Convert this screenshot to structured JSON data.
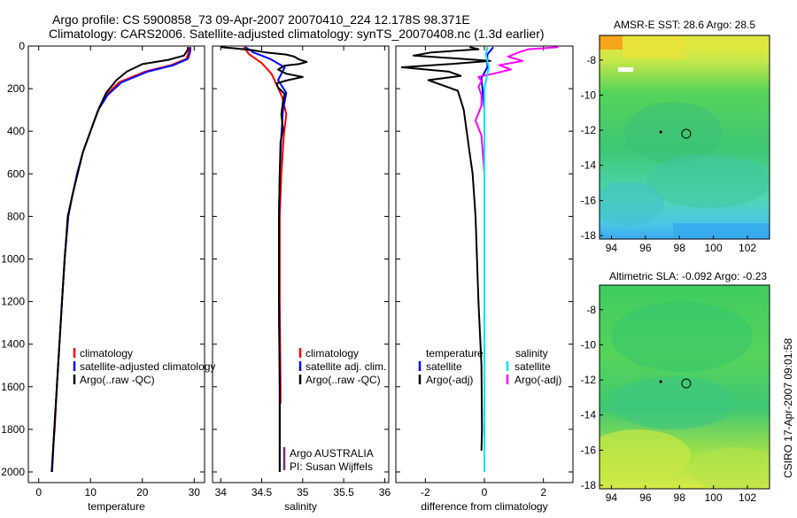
{
  "header": {
    "line1": "Argo profile: CS 5900858_73 09-Apr-2007 20070410_224 12.178S 98.371E",
    "line2": "Climatology: CARS2006. Satellite-adjusted climatology: synTS_20070408.nc (1.3d earlier)"
  },
  "side_label": "CSIRO 17-Apr-2007 09:01:58",
  "colors": {
    "climatology": "#ff0000",
    "satellite": "#0000ff",
    "argo": "#000000",
    "sal_satellite": "#00e5ee",
    "sal_argo": "#ff00ff"
  },
  "chart_data": [
    {
      "id": "temperature",
      "type": "line",
      "xlabel": "temperature",
      "ylabel": "",
      "xlim": [
        -2,
        32
      ],
      "ylim": [
        2050,
        0
      ],
      "x_ticks": [
        0,
        10,
        20,
        30
      ],
      "y_ticks": [
        0,
        200,
        400,
        600,
        800,
        1000,
        1200,
        1400,
        1600,
        1800,
        2000
      ],
      "legend": {
        "placement": "lower-right",
        "entries": [
          {
            "label": "climatology",
            "color": "#ff0000"
          },
          {
            "label": "satellite-adjusted climatology",
            "color": "#0000ff"
          },
          {
            "label": "Argo(..raw -QC)",
            "color": "#000000"
          }
        ]
      },
      "series": [
        {
          "color": "#ff0000",
          "points": [
            [
              29.0,
              5
            ],
            [
              28.9,
              30
            ],
            [
              28.5,
              60
            ],
            [
              25.5,
              90
            ],
            [
              20.5,
              120
            ],
            [
              15.5,
              170
            ],
            [
              13.0,
              230
            ],
            [
              11.5,
              300
            ],
            [
              10.0,
              400
            ],
            [
              8.5,
              500
            ],
            [
              7.5,
              600
            ],
            [
              6.5,
              700
            ],
            [
              5.7,
              800
            ],
            [
              5.0,
              1000
            ],
            [
              4.5,
              1200
            ],
            [
              4.0,
              1400
            ],
            [
              3.5,
              1600
            ],
            [
              3.1,
              1800
            ],
            [
              2.8,
              1880
            ]
          ]
        },
        {
          "color": "#0000ff",
          "points": [
            [
              29.3,
              5
            ],
            [
              29.2,
              30
            ],
            [
              28.8,
              60
            ],
            [
              26.0,
              90
            ],
            [
              21.0,
              120
            ],
            [
              16.0,
              170
            ],
            [
              13.3,
              230
            ],
            [
              11.5,
              300
            ],
            [
              10.0,
              400
            ],
            [
              8.5,
              500
            ],
            [
              7.4,
              600
            ],
            [
              6.5,
              700
            ],
            [
              5.7,
              800
            ],
            [
              5.0,
              1000
            ],
            [
              4.5,
              1200
            ],
            [
              4.0,
              1400
            ],
            [
              3.5,
              1600
            ],
            [
              3.0,
              1800
            ],
            [
              2.6,
              2000
            ]
          ]
        },
        {
          "color": "#000000",
          "points": [
            [
              28.8,
              5
            ],
            [
              28.7,
              20
            ],
            [
              28.0,
              45
            ],
            [
              25.0,
              65
            ],
            [
              20.0,
              85
            ],
            [
              17.0,
              120
            ],
            [
              15.0,
              160
            ],
            [
              13.0,
              220
            ],
            [
              11.5,
              300
            ],
            [
              10.0,
              400
            ],
            [
              8.5,
              500
            ],
            [
              7.5,
              600
            ],
            [
              6.5,
              700
            ],
            [
              5.6,
              800
            ],
            [
              5.0,
              1000
            ],
            [
              4.5,
              1200
            ],
            [
              4.0,
              1400
            ],
            [
              3.5,
              1600
            ],
            [
              3.0,
              1800
            ],
            [
              2.5,
              2000
            ]
          ]
        }
      ]
    },
    {
      "id": "salinity",
      "type": "line",
      "xlabel": "salinity",
      "ylabel": "",
      "xlim": [
        33.9,
        36.05
      ],
      "ylim": [
        2050,
        0
      ],
      "x_ticks": [
        34,
        34.5,
        35,
        35.5,
        36
      ],
      "x_tick_labels": [
        "34",
        "34.5",
        "35",
        "35.5",
        "36"
      ],
      "legend": {
        "placement": "lower-right",
        "entries": [
          {
            "label": "climatology",
            "color": "#ff0000"
          },
          {
            "label": "satellite adj. clim.",
            "color": "#0000ff"
          },
          {
            "label": "Argo(..raw -QC)",
            "color": "#000000"
          }
        ]
      },
      "annotations": [
        "Argo AUSTRALIA",
        "PI: Susan Wijffels"
      ],
      "series": [
        {
          "color": "#ff0000",
          "points": [
            [
              34.28,
              5
            ],
            [
              34.35,
              40
            ],
            [
              34.5,
              80
            ],
            [
              34.62,
              130
            ],
            [
              34.68,
              180
            ],
            [
              34.75,
              240
            ],
            [
              34.8,
              320
            ],
            [
              34.77,
              420
            ],
            [
              34.74,
              600
            ],
            [
              34.72,
              800
            ],
            [
              34.72,
              1200
            ],
            [
              34.73,
              1600
            ],
            [
              34.73,
              1680
            ]
          ]
        },
        {
          "color": "#0000ff",
          "points": [
            [
              34.3,
              5
            ],
            [
              34.4,
              30
            ],
            [
              34.6,
              60
            ],
            [
              34.78,
              100
            ],
            [
              34.7,
              160
            ],
            [
              34.8,
              220
            ],
            [
              34.76,
              300
            ],
            [
              34.74,
              420
            ],
            [
              34.72,
              600
            ],
            [
              34.71,
              800
            ],
            [
              34.71,
              1200
            ],
            [
              34.72,
              1600
            ],
            [
              34.72,
              2000
            ]
          ]
        },
        {
          "color": "#000000",
          "points": [
            [
              34.0,
              5
            ],
            [
              34.2,
              12
            ],
            [
              34.4,
              20
            ],
            [
              34.55,
              30
            ],
            [
              34.8,
              40
            ],
            [
              34.9,
              50
            ],
            [
              34.95,
              62
            ],
            [
              35.05,
              75
            ],
            [
              34.95,
              85
            ],
            [
              34.78,
              92
            ],
            [
              34.7,
              110
            ],
            [
              34.8,
              130
            ],
            [
              35.0,
              145
            ],
            [
              34.82,
              160
            ],
            [
              34.68,
              175
            ],
            [
              34.7,
              195
            ],
            [
              34.78,
              225
            ],
            [
              34.76,
              260
            ],
            [
              34.74,
              320
            ],
            [
              34.76,
              390
            ],
            [
              34.73,
              450
            ],
            [
              34.72,
              600
            ],
            [
              34.71,
              800
            ],
            [
              34.71,
              1200
            ],
            [
              34.72,
              1600
            ],
            [
              34.72,
              2000
            ]
          ]
        }
      ]
    },
    {
      "id": "difference",
      "type": "line",
      "xlabel": "difference from climatology",
      "ylabel": "",
      "xlim": [
        -3.0,
        3.0
      ],
      "ylim": [
        2050,
        0
      ],
      "x_ticks": [
        -2,
        0,
        2
      ],
      "legend": {
        "placement": "lower-right",
        "entries": [
          {
            "group": "temperature",
            "label": "satellite",
            "color": "#0000ff"
          },
          {
            "group": "temperature",
            "label": "Argo(-adj)",
            "color": "#000000"
          },
          {
            "group": "salinity",
            "label": "satellite",
            "color": "#00e5ee"
          },
          {
            "group": "salinity",
            "label": "Argo(-adj)",
            "color": "#ff00ff"
          }
        ]
      },
      "series": [
        {
          "group": "temperature",
          "label": "Argo(-adj)",
          "color": "#000000",
          "points": [
            [
              -0.5,
              5
            ],
            [
              -0.2,
              15
            ],
            [
              -1.8,
              30
            ],
            [
              -2.4,
              45
            ],
            [
              -1.0,
              58
            ],
            [
              0.2,
              70
            ],
            [
              -1.2,
              85
            ],
            [
              -2.8,
              100
            ],
            [
              -1.2,
              120
            ],
            [
              -0.8,
              140
            ],
            [
              -1.9,
              160
            ],
            [
              -1.5,
              180
            ],
            [
              -0.9,
              210
            ],
            [
              -0.7,
              300
            ],
            [
              -0.6,
              400
            ],
            [
              -0.5,
              500
            ],
            [
              -0.4,
              600
            ],
            [
              -0.3,
              800
            ],
            [
              -0.2,
              1200
            ],
            [
              -0.1,
              1500
            ],
            [
              -0.08,
              1800
            ],
            [
              -0.1,
              1900
            ]
          ]
        },
        {
          "group": "temperature",
          "label": "satellite",
          "color": "#0000ff",
          "points": [
            [
              0.3,
              5
            ],
            [
              0.1,
              40
            ],
            [
              0.1,
              100
            ],
            [
              -0.1,
              150
            ],
            [
              0.0,
              300
            ],
            [
              0.0,
              600
            ],
            [
              0.0,
              1000
            ],
            [
              0.0,
              1400
            ]
          ]
        },
        {
          "group": "salinity",
          "label": "Argo(-adj)",
          "color": "#ff00ff",
          "points": [
            [
              2.5,
              5
            ],
            [
              1.5,
              15
            ],
            [
              1.2,
              28
            ],
            [
              0.8,
              50
            ],
            [
              1.3,
              70
            ],
            [
              0.5,
              90
            ],
            [
              0.9,
              110
            ],
            [
              0.3,
              130
            ],
            [
              -0.2,
              145
            ],
            [
              -0.1,
              165
            ],
            [
              -0.2,
              190
            ],
            [
              -0.1,
              230
            ],
            [
              -0.1,
              280
            ],
            [
              -0.3,
              350
            ],
            [
              -0.1,
              420
            ],
            [
              0.0,
              600
            ],
            [
              0.0,
              1200
            ],
            [
              0.0,
              1700
            ]
          ]
        },
        {
          "group": "salinity",
          "label": "satellite",
          "color": "#00e5ee",
          "points": [
            [
              0.1,
              5
            ],
            [
              0.05,
              40
            ],
            [
              0.15,
              100
            ],
            [
              0.0,
              200
            ],
            [
              0.0,
              400
            ],
            [
              0.0,
              800
            ],
            [
              0.0,
              1400
            ],
            [
              0.0,
              2000
            ]
          ]
        }
      ]
    },
    {
      "id": "sst_map",
      "type": "heatmap",
      "title": "AMSR-E SST: 28.6 Argo: 28.5",
      "xlim": [
        93.3,
        103.3
      ],
      "ylim": [
        -18.2,
        -6.6
      ],
      "x_ticks": [
        94,
        96,
        98,
        100,
        102
      ],
      "y_ticks": [
        -8,
        -10,
        -12,
        -14,
        -16,
        -18
      ],
      "markers": [
        {
          "x": 98.4,
          "y": -12.2,
          "shape": "circle"
        },
        {
          "x": 96.9,
          "y": -12.1,
          "shape": "dot"
        }
      ]
    },
    {
      "id": "sla_map",
      "type": "heatmap",
      "title": "Altimetric SLA: -0.092 Argo: -0.23",
      "xlim": [
        93.3,
        103.3
      ],
      "ylim": [
        -18.2,
        -6.6
      ],
      "x_ticks": [
        94,
        96,
        98,
        100,
        102
      ],
      "y_ticks": [
        -8,
        -10,
        -12,
        -14,
        -16,
        -18
      ],
      "markers": [
        {
          "x": 98.4,
          "y": -12.2,
          "shape": "circle"
        },
        {
          "x": 96.9,
          "y": -12.1,
          "shape": "dot"
        }
      ]
    }
  ]
}
